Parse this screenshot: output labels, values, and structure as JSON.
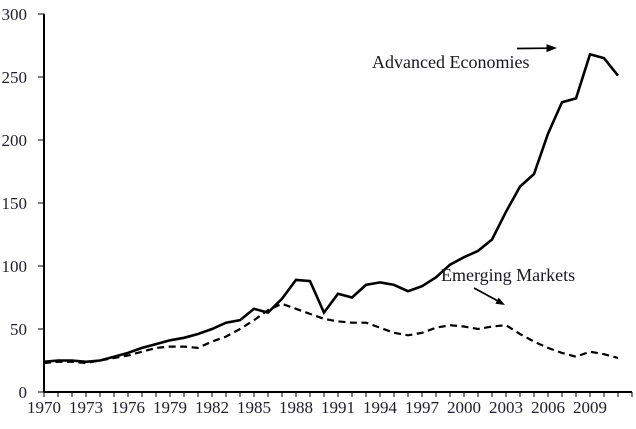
{
  "chart_data": {
    "type": "line",
    "title": "",
    "xlabel": "",
    "ylabel": "",
    "background_color": "#ffffff",
    "line_color": "#000000",
    "grid": "off",
    "legend_position": "inline-annotations-with-arrows",
    "ylim": [
      0,
      300
    ],
    "yticks": [
      0,
      50,
      100,
      150,
      200,
      250,
      300
    ],
    "ytick_labels": [
      "0",
      "50",
      "100",
      "150",
      "200",
      "250",
      "300"
    ],
    "x_axis_range": [
      1970,
      2012
    ],
    "xtick_interval_years": 1,
    "xtick_labels": [
      1970,
      1973,
      1976,
      1979,
      1982,
      1985,
      1988,
      1991,
      1994,
      1997,
      2000,
      2003,
      2006,
      2009
    ],
    "x": [
      1970,
      1971,
      1972,
      1973,
      1974,
      1975,
      1976,
      1977,
      1978,
      1979,
      1980,
      1981,
      1982,
      1983,
      1984,
      1985,
      1986,
      1987,
      1988,
      1989,
      1990,
      1991,
      1992,
      1993,
      1994,
      1995,
      1996,
      1997,
      1998,
      1999,
      2000,
      2001,
      2002,
      2003,
      2004,
      2005,
      2006,
      2007,
      2008,
      2009,
      2010,
      2011
    ],
    "series": [
      {
        "name": "Advanced Economies",
        "style": "solid",
        "values": [
          24,
          25,
          25,
          24,
          25,
          28,
          31,
          35,
          38,
          41,
          43,
          46,
          50,
          55,
          57,
          66,
          63,
          74,
          89,
          88,
          63,
          78,
          75,
          85,
          87,
          85,
          80,
          84,
          91,
          101,
          107,
          112,
          121,
          143,
          163,
          173,
          205,
          230,
          233,
          268,
          265,
          251
        ]
      },
      {
        "name": "Emerging Markets",
        "style": "dashed",
        "values": [
          23,
          24,
          24,
          23,
          25,
          27,
          29,
          32,
          35,
          36,
          36,
          35,
          40,
          44,
          50,
          57,
          65,
          70,
          66,
          62,
          58,
          56,
          55,
          55,
          51,
          47,
          45,
          47,
          51,
          53,
          52,
          50,
          52,
          53,
          46,
          40,
          35,
          31,
          28,
          32,
          30,
          27
        ]
      }
    ],
    "annotations": [
      {
        "text": "Advanced Economies",
        "series": "Advanced Economies",
        "arrow_direction": "right"
      },
      {
        "text": "Emerging Markets",
        "series": "Emerging Markets",
        "arrow_direction": "down-right"
      }
    ]
  }
}
